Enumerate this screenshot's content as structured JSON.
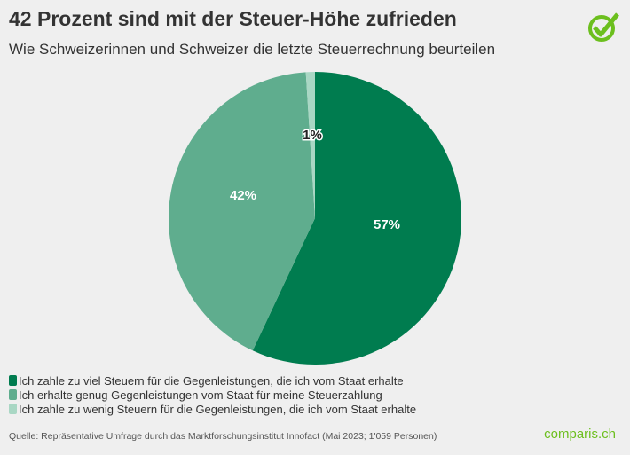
{
  "header": {
    "title": "42 Prozent sind mit der Steuer-Höhe zufrieden",
    "subtitle": "Wie Schweizerinnen und Schweizer die letzte Steuerrechnung beurteilen"
  },
  "chart_data": {
    "type": "pie",
    "title": "42 Prozent sind mit der Steuer-Höhe zufrieden",
    "subtitle": "Wie Schweizerinnen und Schweizer die letzte Steuerrechnung beurteilen",
    "legend_position": "bottom-left",
    "slices": [
      {
        "name": "Ich zahle zu viel Steuern für die Gegenleistungen, die ich vom Staat erhalte",
        "value": 57,
        "label": "57%",
        "color": "#007c4f"
      },
      {
        "name": "Ich erhalte genug Gegenleistungen vom Staat für meine Steuerzahlung",
        "value": 42,
        "label": "42%",
        "color": "#5fad8e"
      },
      {
        "name": "Ich zahle zu wenig Steuern für die Gegenleistungen, die ich vom Staat erhalte",
        "value": 1,
        "label": "1%",
        "color": "#a9d7c4"
      }
    ]
  },
  "footer": {
    "source": "Quelle: Repräsentative Umfrage durch das Marktforschungsinstitut Innofact (Mai 2023; 1'059 Personen)",
    "brand": "comparis.ch"
  },
  "icons": {
    "logo": "check-circle-icon",
    "logo_color": "#6cbf1e"
  }
}
